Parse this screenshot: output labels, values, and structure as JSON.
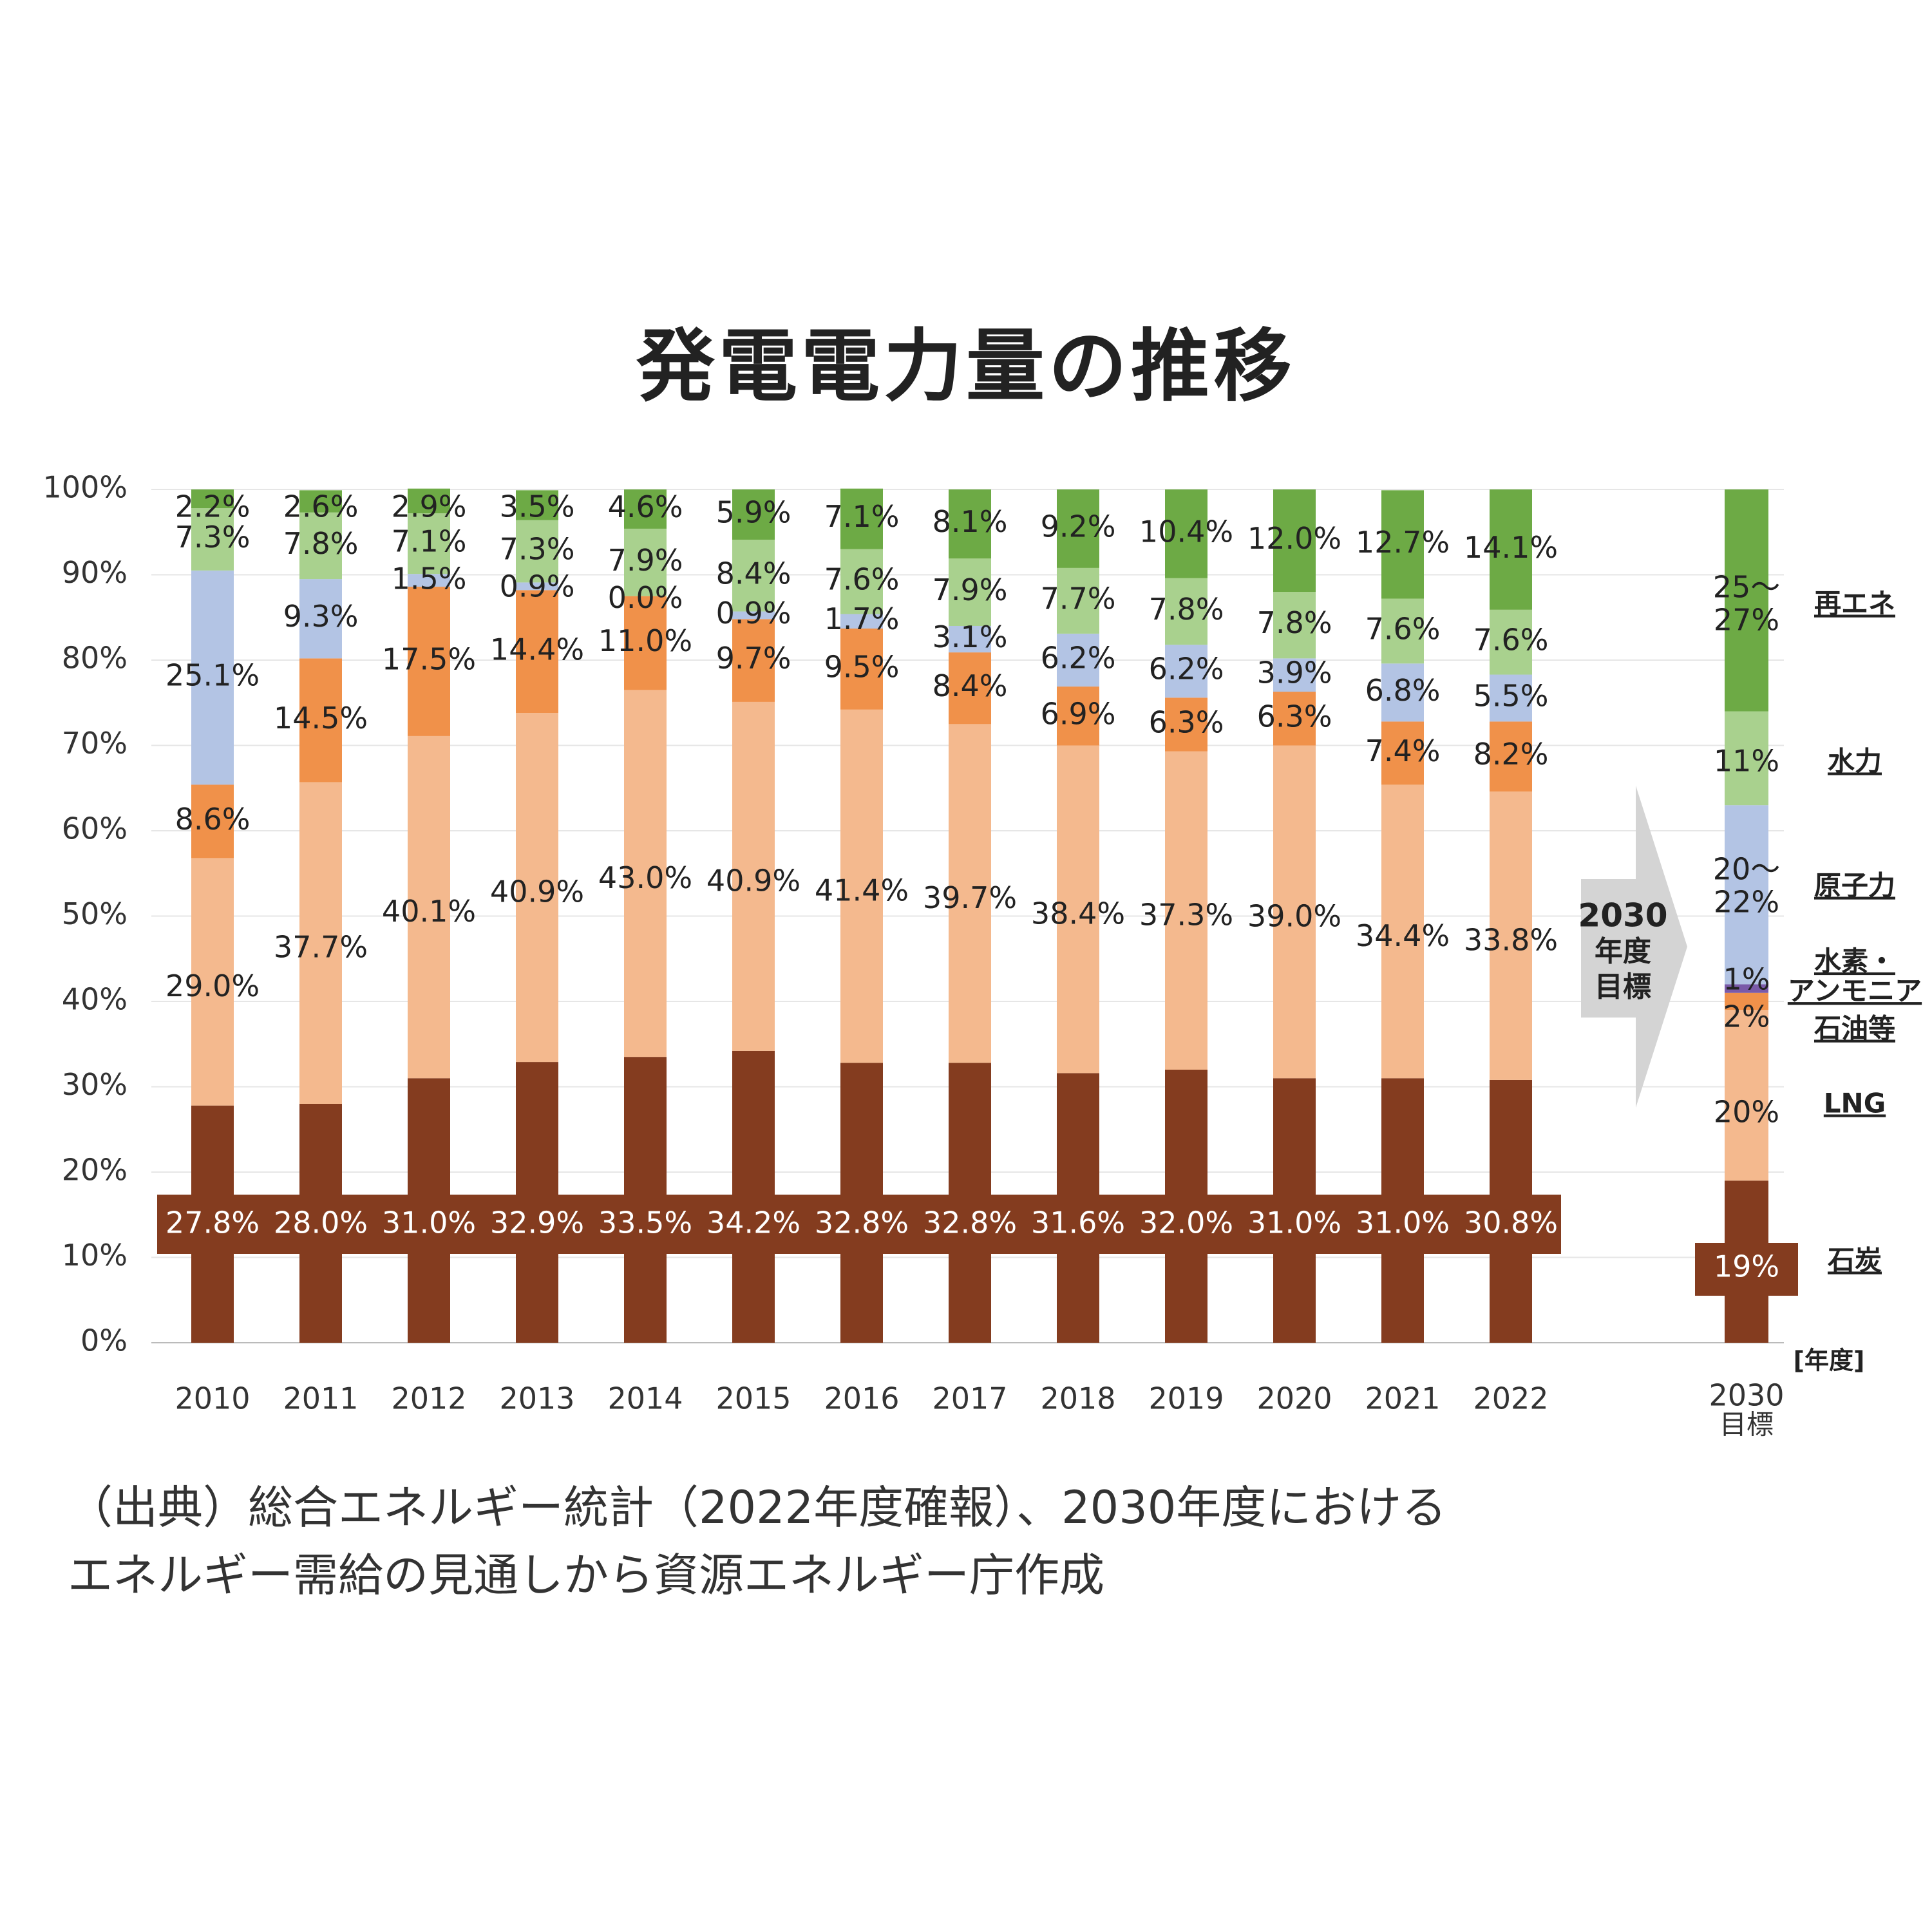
{
  "title": "発電電力量の推移",
  "source_lines": [
    "（出典）総合エネルギー統計（2022年度確報）、2030年度における",
    "エネルギー需給の見通しから資源エネルギー庁作成"
  ],
  "colors": {
    "coal": "#843C1F",
    "lng": "#F4B98E",
    "oil": "#F0914A",
    "hydrogen": "#7A5AA8",
    "nuclear": "#B3C4E4",
    "hydro": "#A9D18E",
    "renewable": "#6DAA45",
    "arrow": "#D4D4D4"
  },
  "arrow_label": [
    "2030",
    "年度",
    "目標"
  ],
  "chart_data": {
    "type": "bar",
    "stacked": true,
    "ylim": [
      0,
      100
    ],
    "y_ticks": [
      "0%",
      "10%",
      "20%",
      "30%",
      "40%",
      "50%",
      "60%",
      "70%",
      "80%",
      "90%",
      "100%"
    ],
    "x_unit_label": "[年度]",
    "categories": [
      "2010",
      "2011",
      "2012",
      "2013",
      "2014",
      "2015",
      "2016",
      "2017",
      "2018",
      "2019",
      "2020",
      "2021",
      "2022"
    ],
    "series": [
      {
        "key": "coal",
        "values": [
          27.8,
          28.0,
          31.0,
          32.9,
          33.5,
          34.2,
          32.8,
          32.8,
          31.6,
          32.0,
          31.0,
          31.0,
          30.8
        ],
        "labels": [
          "27.8%",
          "28.0%",
          "31.0%",
          "32.9%",
          "33.5%",
          "34.2%",
          "32.8%",
          "32.8%",
          "31.6%",
          "32.0%",
          "31.0%",
          "31.0%",
          "30.8%"
        ]
      },
      {
        "key": "lng",
        "values": [
          29.0,
          37.7,
          40.1,
          40.9,
          43.0,
          40.9,
          41.4,
          39.7,
          38.4,
          37.3,
          39.0,
          34.4,
          33.8
        ],
        "labels": [
          "29.0%",
          "37.7%",
          "40.1%",
          "40.9%",
          "43.0%",
          "40.9%",
          "41.4%",
          "39.7%",
          "38.4%",
          "37.3%",
          "39.0%",
          "34.4%",
          "33.8%"
        ]
      },
      {
        "key": "oil",
        "values": [
          8.6,
          14.5,
          17.5,
          14.4,
          11.0,
          9.7,
          9.5,
          8.4,
          6.9,
          6.3,
          6.3,
          7.4,
          8.2
        ],
        "labels": [
          "8.6%",
          "14.5%",
          "17.5%",
          "14.4%",
          "11.0%",
          "9.7%",
          "9.5%",
          "8.4%",
          "6.9%",
          "6.3%",
          "6.3%",
          "7.4%",
          "8.2%"
        ]
      },
      {
        "key": "nuclear",
        "values": [
          25.1,
          9.3,
          1.5,
          0.9,
          0.0,
          0.9,
          1.7,
          3.1,
          6.2,
          6.2,
          3.9,
          6.8,
          5.5
        ],
        "labels": [
          "25.1%",
          "9.3%",
          "1.5%",
          "0.9%",
          "0.0%",
          "0.9%",
          "1.7%",
          "3.1%",
          "6.2%",
          "6.2%",
          "3.9%",
          "6.8%",
          "5.5%"
        ]
      },
      {
        "key": "hydro",
        "values": [
          7.3,
          7.8,
          7.1,
          7.3,
          7.9,
          8.4,
          7.6,
          7.9,
          7.7,
          7.8,
          7.8,
          7.6,
          7.6
        ],
        "labels": [
          "7.3%",
          "7.8%",
          "7.1%",
          "7.3%",
          "7.9%",
          "8.4%",
          "7.6%",
          "7.9%",
          "7.7%",
          "7.8%",
          "7.8%",
          "7.6%",
          "7.6%"
        ]
      },
      {
        "key": "renewable",
        "values": [
          2.2,
          2.6,
          2.9,
          3.5,
          4.6,
          5.9,
          7.1,
          8.1,
          9.2,
          10.4,
          12.0,
          12.7,
          14.1
        ],
        "labels": [
          "2.2%",
          "2.6%",
          "2.9%",
          "3.5%",
          "4.6%",
          "5.9%",
          "7.1%",
          "8.1%",
          "9.2%",
          "10.4%",
          "12.0%",
          "12.7%",
          "14.1%"
        ]
      }
    ],
    "target_2030": {
      "category": [
        "2030",
        "目標"
      ],
      "segments": [
        {
          "key": "coal",
          "value": 19,
          "label": "19%"
        },
        {
          "key": "lng",
          "value": 20,
          "label": "20%"
        },
        {
          "key": "oil",
          "value": 2,
          "label": "2%"
        },
        {
          "key": "hydrogen",
          "value": 1,
          "label": "1%"
        },
        {
          "key": "nuclear",
          "value": 21,
          "label": "20～\n22%"
        },
        {
          "key": "hydro",
          "value": 11,
          "label": "11%"
        },
        {
          "key": "renewable",
          "value": 26,
          "label": "25～\n27%"
        }
      ]
    },
    "legend": [
      {
        "key": "renewable",
        "label": "再エネ"
      },
      {
        "key": "hydro",
        "label": "水力"
      },
      {
        "key": "nuclear",
        "label": "原子力"
      },
      {
        "key": "hydrogen",
        "label": "水素・\nアンモニア"
      },
      {
        "key": "oil",
        "label": "石油等"
      },
      {
        "key": "lng",
        "label": "LNG"
      },
      {
        "key": "coal",
        "label": "石炭"
      }
    ],
    "legend_placement": "right"
  }
}
